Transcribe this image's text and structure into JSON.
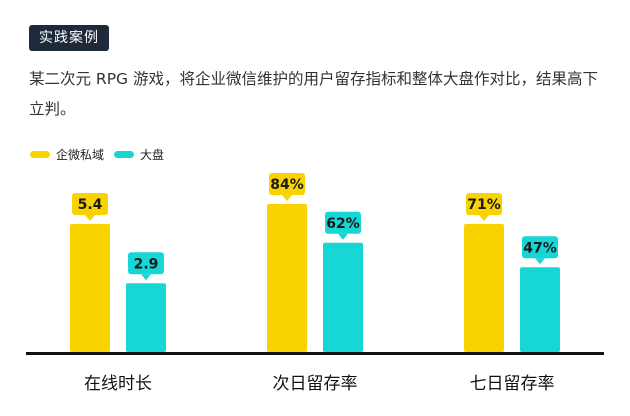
{
  "header": {
    "tag": "实践案例",
    "description": "某二次元 RPG 游戏，将企业微信维护的用户留存指标和整体大盘作对比，结果高下立判。"
  },
  "legend": [
    {
      "label": "企微私域",
      "color": "#f9d300"
    },
    {
      "label": "大盘",
      "color": "#16d6d6"
    }
  ],
  "chart_data": {
    "type": "bar",
    "categories": [
      "在线时长",
      "次日留存率",
      "七日留存率"
    ],
    "series": [
      {
        "name": "企微私域",
        "values": [
          5.4,
          84,
          71
        ],
        "labels": [
          "5.4",
          "84%",
          "71%"
        ],
        "color": "#f9d300"
      },
      {
        "name": "大盘",
        "values": [
          2.9,
          62,
          47
        ],
        "labels": [
          "2.9",
          "62%",
          "47%"
        ],
        "color": "#16d6d6"
      }
    ],
    "legend_position": "top-left",
    "grid": false,
    "axis_color": "#111111"
  }
}
